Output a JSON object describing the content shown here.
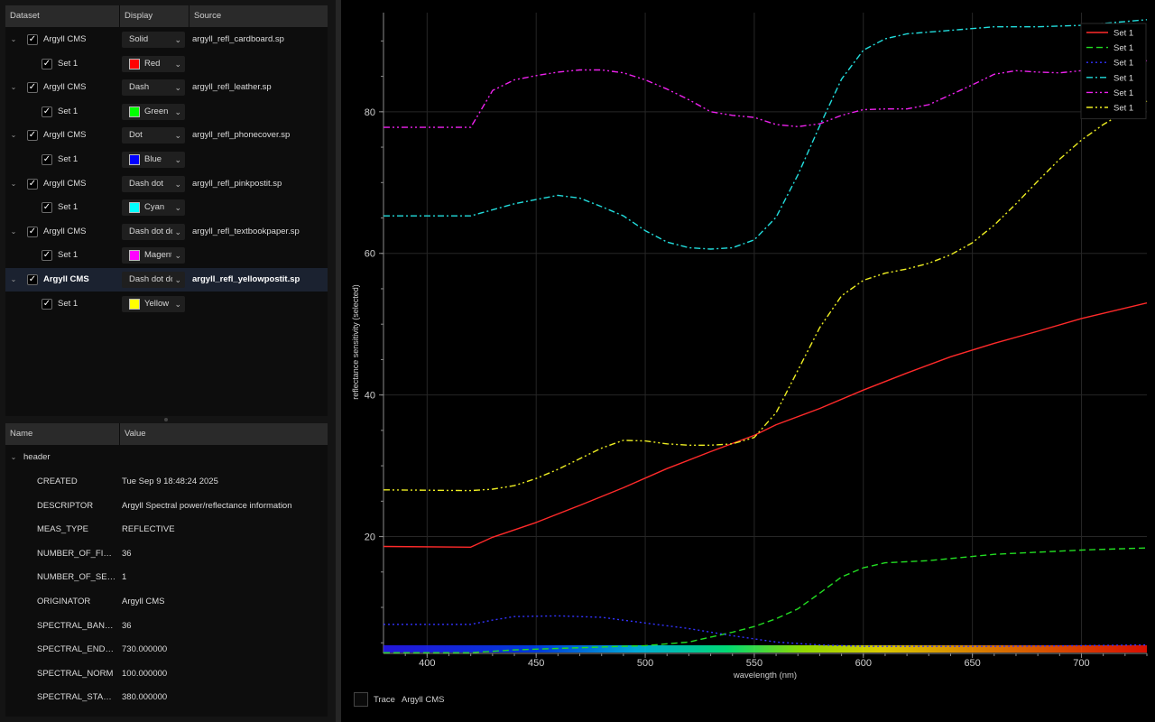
{
  "dataset_tree": {
    "columns": [
      "Dataset",
      "Display",
      "Source"
    ],
    "datasets": [
      {
        "label": "Argyll CMS",
        "style": "Solid",
        "source": "argyll_refl_cardboard.sp",
        "selected": false,
        "set": {
          "label": "Set 1",
          "color_name": "Red",
          "color": "#ff0000"
        }
      },
      {
        "label": "Argyll CMS",
        "style": "Dash",
        "source": "argyll_refl_leather.sp",
        "selected": false,
        "set": {
          "label": "Set 1",
          "color_name": "Green",
          "color": "#00ff00"
        }
      },
      {
        "label": "Argyll CMS",
        "style": "Dot",
        "source": "argyll_refl_phonecover.sp",
        "selected": false,
        "set": {
          "label": "Set 1",
          "color_name": "Blue",
          "color": "#0000ff"
        }
      },
      {
        "label": "Argyll CMS",
        "style": "Dash dot",
        "source": "argyll_refl_pinkpostit.sp",
        "selected": false,
        "set": {
          "label": "Set 1",
          "color_name": "Cyan",
          "color": "#00ffff"
        }
      },
      {
        "label": "Argyll CMS",
        "style": "Dash dot dot",
        "source": "argyll_refl_textbookpaper.sp",
        "selected": false,
        "set": {
          "label": "Set 1",
          "color_name": "Magenta",
          "color": "#ff00ff"
        }
      },
      {
        "label": "Argyll CMS",
        "style": "Dash dot dot",
        "source": "argyll_refl_yellowpostit.sp",
        "selected": true,
        "set": {
          "label": "Set 1",
          "color_name": "Yellow",
          "color": "#ffff00"
        }
      }
    ]
  },
  "properties": {
    "columns": [
      "Name",
      "Value"
    ],
    "group": "header",
    "rows": [
      {
        "name": "CREATED",
        "value": "Tue Sep  9 18:48:24 2025"
      },
      {
        "name": "DESCRIPTOR",
        "value": "Argyll Spectral power/reflectance information"
      },
      {
        "name": "MEAS_TYPE",
        "value": "REFLECTIVE"
      },
      {
        "name": "NUMBER_OF_FIELDS",
        "value": "36"
      },
      {
        "name": "NUMBER_OF_SETS",
        "value": "1"
      },
      {
        "name": "ORIGINATOR",
        "value": "Argyll CMS"
      },
      {
        "name": "SPECTRAL_BANDS",
        "value": "36"
      },
      {
        "name": "SPECTRAL_END_NM",
        "value": "730.000000"
      },
      {
        "name": "SPECTRAL_NORM",
        "value": "100.000000"
      },
      {
        "name": "SPECTRAL_START_NM",
        "value": "380.000000"
      }
    ]
  },
  "trace": {
    "label": "Trace",
    "value": "Argyll CMS"
  },
  "chart_data": {
    "type": "line",
    "xlabel": "wavelength (nm)",
    "ylabel": "reflectance sensitivity (selected)",
    "xlim": [
      380,
      730
    ],
    "ylim": [
      3.5,
      94
    ],
    "xticks": [
      400,
      450,
      500,
      550,
      600,
      650,
      700
    ],
    "yticks": [
      20,
      40,
      60,
      80
    ],
    "grid": true,
    "legend_position": "top-right",
    "spectrum_bar": true,
    "series": [
      {
        "name": "Set 1",
        "color": "#ff2a2a",
        "dash": "solid",
        "x": [
          380,
          420,
          430,
          450,
          470,
          490,
          510,
          530,
          550,
          560,
          580,
          600,
          620,
          640,
          660,
          680,
          700,
          730
        ],
        "y": [
          18.6,
          18.5,
          19.9,
          22.0,
          24.4,
          26.9,
          29.6,
          32.0,
          34.3,
          35.8,
          38.1,
          40.7,
          43.1,
          45.4,
          47.3,
          49.0,
          50.8,
          53.0
        ]
      },
      {
        "name": "Set 1",
        "color": "#22dd22",
        "dash": "dash",
        "x": [
          380,
          420,
          440,
          460,
          480,
          500,
          520,
          540,
          550,
          560,
          570,
          580,
          590,
          600,
          610,
          630,
          660,
          700,
          730
        ],
        "y": [
          3.6,
          3.6,
          4.0,
          4.2,
          4.4,
          4.6,
          5.1,
          6.5,
          7.3,
          8.4,
          9.8,
          12.0,
          14.3,
          15.6,
          16.3,
          16.6,
          17.5,
          18.1,
          18.4
        ]
      },
      {
        "name": "Set 1",
        "color": "#3333ff",
        "dash": "dot",
        "x": [
          380,
          420,
          430,
          440,
          460,
          480,
          500,
          520,
          540,
          560,
          580,
          600,
          620,
          660,
          700,
          730
        ],
        "y": [
          7.6,
          7.6,
          8.2,
          8.7,
          8.8,
          8.6,
          7.8,
          7.0,
          6.0,
          5.1,
          4.7,
          4.5,
          4.5,
          4.5,
          4.6,
          4.7
        ]
      },
      {
        "name": "Set 1",
        "color": "#22dddd",
        "dash": "dashdot",
        "x": [
          380,
          420,
          440,
          450,
          460,
          470,
          480,
          490,
          500,
          510,
          520,
          530,
          540,
          550,
          560,
          570,
          580,
          590,
          600,
          610,
          620,
          640,
          660,
          680,
          700,
          730
        ],
        "y": [
          65.3,
          65.3,
          67.0,
          67.6,
          68.2,
          67.8,
          66.6,
          65.3,
          63.2,
          61.6,
          60.8,
          60.6,
          60.8,
          61.9,
          65.1,
          71.1,
          78.0,
          84.6,
          88.7,
          90.3,
          91.0,
          91.5,
          92.0,
          92.0,
          92.2,
          93.0
        ]
      },
      {
        "name": "Set 1",
        "color": "#ee22ee",
        "dash": "dashdotdot",
        "x": [
          380,
          420,
          430,
          440,
          450,
          460,
          470,
          480,
          490,
          500,
          510,
          520,
          530,
          540,
          550,
          560,
          570,
          580,
          590,
          600,
          610,
          620,
          630,
          640,
          650,
          660,
          670,
          680,
          690,
          700,
          710,
          720,
          730
        ],
        "y": [
          77.8,
          77.8,
          83.0,
          84.5,
          85.1,
          85.6,
          85.9,
          85.9,
          85.5,
          84.5,
          83.2,
          81.7,
          80.0,
          79.5,
          79.2,
          78.2,
          77.9,
          78.3,
          79.5,
          80.3,
          80.4,
          80.4,
          81.0,
          82.4,
          83.8,
          85.3,
          85.8,
          85.6,
          85.5,
          85.8,
          86.4,
          86.8,
          87.2
        ]
      },
      {
        "name": "Set 1",
        "color": "#eeee22",
        "dash": "dashdotdot",
        "x": [
          380,
          420,
          430,
          440,
          450,
          460,
          470,
          480,
          490,
          500,
          510,
          520,
          530,
          540,
          550,
          560,
          570,
          580,
          590,
          600,
          610,
          620,
          630,
          640,
          650,
          660,
          670,
          680,
          690,
          700,
          710,
          720,
          730
        ],
        "y": [
          26.6,
          26.5,
          26.7,
          27.2,
          28.2,
          29.5,
          31.0,
          32.5,
          33.6,
          33.5,
          33.1,
          32.9,
          32.9,
          33.1,
          34.0,
          37.5,
          43.5,
          49.5,
          54.0,
          56.2,
          57.2,
          57.8,
          58.6,
          59.8,
          61.5,
          64.0,
          67.0,
          70.2,
          73.3,
          76.0,
          78.2,
          80.0,
          81.5
        ]
      }
    ]
  }
}
